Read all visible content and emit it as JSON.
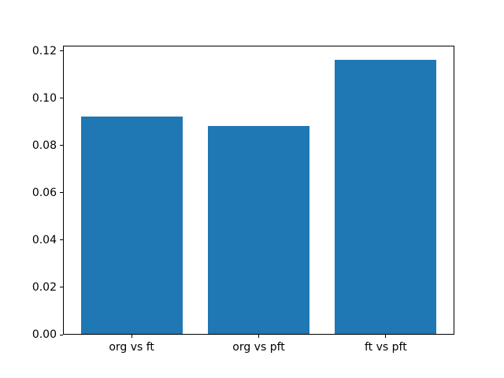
{
  "chart_data": {
    "type": "bar",
    "title": "",
    "xlabel": "",
    "ylabel": "",
    "categories": [
      "org vs ft",
      "org vs pft",
      "ft vs pft"
    ],
    "values": [
      0.092,
      0.088,
      0.116
    ],
    "bar_color": "#1f77b4",
    "bar_width": 0.8,
    "xlim": [
      -0.54,
      2.54
    ],
    "ylim": [
      0,
      0.1223
    ],
    "yticks": [
      0.0,
      0.02,
      0.04,
      0.06,
      0.08,
      0.1,
      0.12
    ],
    "ytick_labels": [
      "0.00",
      "0.02",
      "0.04",
      "0.06",
      "0.08",
      "0.10",
      "0.12"
    ],
    "grid": false,
    "legend": null,
    "spines": "all",
    "background_color": "#ffffff",
    "text_color": "#000000"
  }
}
